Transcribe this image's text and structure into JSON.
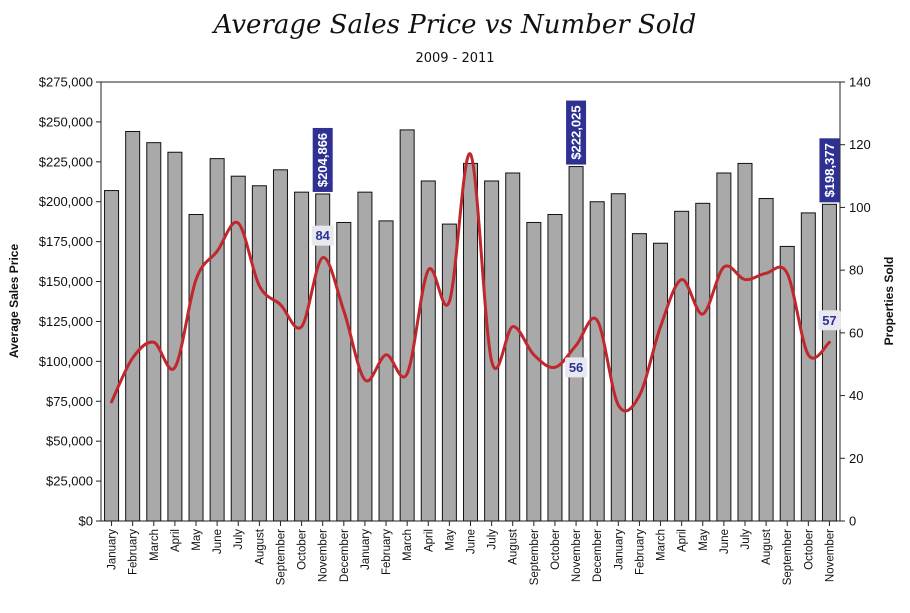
{
  "chart_data": {
    "type": "bar",
    "title": "Average Sales Price vs Number Sold",
    "subtitle": "2009 - 2011",
    "ylabel": "Average Sales Price",
    "y2label": "Properties Sold",
    "ylim": [
      0,
      275000
    ],
    "y2lim": [
      0,
      140
    ],
    "y_ticks": [
      "$0",
      "$25,000",
      "$50,000",
      "$75,000",
      "$100,000",
      "$125,000",
      "$150,000",
      "$175,000",
      "$200,000",
      "$225,000",
      "$250,000",
      "$275,000"
    ],
    "y2_ticks": [
      "0",
      "20",
      "40",
      "60",
      "80",
      "100",
      "120",
      "140"
    ],
    "categories": [
      "January",
      "February",
      "March",
      "April",
      "May",
      "June",
      "July",
      "August",
      "September",
      "October",
      "November",
      "December",
      "January",
      "February",
      "March",
      "April",
      "May",
      "June",
      "July",
      "August",
      "September",
      "October",
      "November",
      "December",
      "January",
      "February",
      "March",
      "April",
      "May",
      "June",
      "July",
      "August",
      "September",
      "October",
      "November"
    ],
    "series": [
      {
        "name": "Average Sales Price",
        "type": "bar",
        "color": "#a9a9a9",
        "values": [
          207000,
          244000,
          237000,
          231000,
          192000,
          227000,
          216000,
          210000,
          220000,
          206000,
          204866,
          187000,
          206000,
          188000,
          245000,
          213000,
          186000,
          224000,
          213000,
          218000,
          187000,
          192000,
          222025,
          200000,
          205000,
          180000,
          174000,
          194000,
          199000,
          218000,
          224000,
          202000,
          172000,
          193000,
          198377
        ]
      },
      {
        "name": "Properties Sold",
        "type": "line",
        "axis": "right",
        "color": "#c0282d",
        "values": [
          38,
          52,
          57,
          49,
          77,
          86,
          95,
          75,
          69,
          62,
          84,
          67,
          45,
          53,
          47,
          80,
          70,
          117,
          51,
          62,
          53,
          49,
          56,
          64,
          37,
          40,
          62,
          77,
          66,
          81,
          77,
          79,
          79,
          53,
          57
        ]
      }
    ],
    "annotations": [
      {
        "label": "$204,866",
        "category_index": 10,
        "series": "Average Sales Price"
      },
      {
        "label": "$222,025",
        "category_index": 22,
        "series": "Average Sales Price"
      },
      {
        "label": "$198,377",
        "category_index": 34,
        "series": "Average Sales Price"
      },
      {
        "label": "84",
        "category_index": 10,
        "series": "Properties Sold"
      },
      {
        "label": "56",
        "category_index": 22,
        "series": "Properties Sold"
      },
      {
        "label": "57",
        "category_index": 34,
        "series": "Properties Sold"
      }
    ],
    "callout_color": "#2e3192",
    "grid": false
  }
}
